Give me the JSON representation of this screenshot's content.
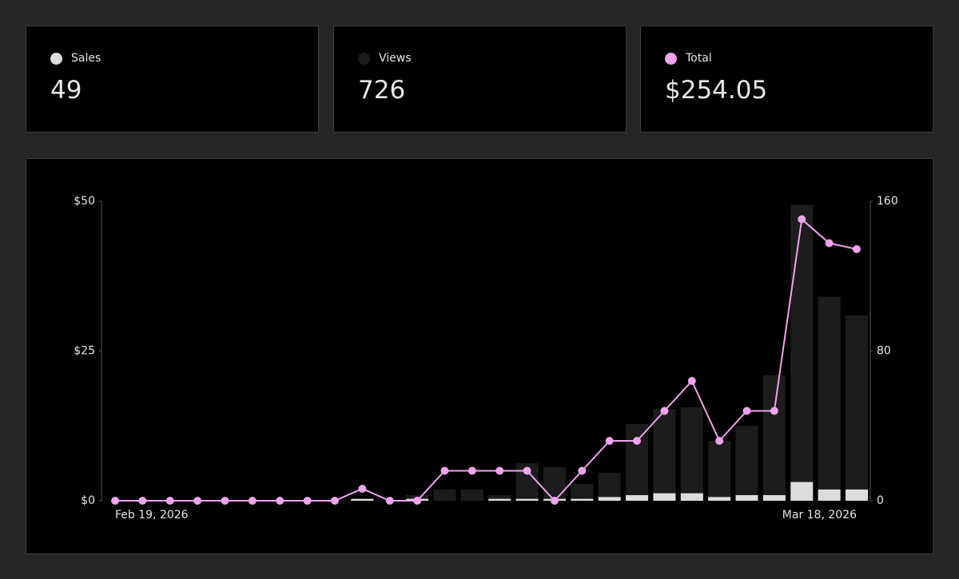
{
  "summary": [
    "49",
    "726",
    "$254.05"
  ],
  "chart_data": {
    "type": "combo",
    "categories": [
      "Feb 19, 2026",
      null,
      null,
      null,
      null,
      null,
      null,
      null,
      null,
      null,
      null,
      null,
      null,
      null,
      null,
      null,
      null,
      null,
      null,
      null,
      null,
      null,
      null,
      null,
      null,
      null,
      null,
      "Mar 18, 2026"
    ],
    "series": [
      {
        "name": "Sales",
        "type": "bar",
        "axis": "y2",
        "color": "#dcdcdc",
        "values": [
          0,
          0,
          0,
          0,
          0,
          0,
          0,
          0,
          0,
          1,
          0,
          1,
          0,
          0,
          1,
          1,
          1,
          1,
          2,
          3,
          4,
          4,
          2,
          3,
          3,
          10,
          6,
          6
        ]
      },
      {
        "name": "Views",
        "type": "bar",
        "axis": "y2",
        "color": "#1c1c1c",
        "values": [
          0,
          0,
          0,
          0,
          0,
          0,
          0,
          0,
          0,
          1,
          0,
          3,
          6,
          6,
          3,
          20,
          18,
          9,
          15,
          41,
          49,
          50,
          32,
          40,
          67,
          158,
          109,
          99
        ]
      },
      {
        "name": "Total",
        "type": "line",
        "axis": "y",
        "color": "#f0a3ee",
        "values": [
          0,
          0,
          0,
          0,
          0,
          0,
          0,
          0,
          0,
          2,
          0,
          0,
          5,
          5,
          5,
          5,
          0,
          5,
          10,
          10,
          15,
          20,
          10,
          15,
          15,
          47,
          43,
          42
        ]
      }
    ],
    "ylim": [
      0,
      50
    ],
    "yticks": [
      {
        "value": 0,
        "label": "$0"
      },
      {
        "value": 25,
        "label": "$25"
      },
      {
        "value": 50,
        "label": "$50"
      }
    ],
    "y2lim": [
      0,
      160
    ],
    "y2ticks": [
      0,
      80,
      160
    ],
    "grid": false
  }
}
